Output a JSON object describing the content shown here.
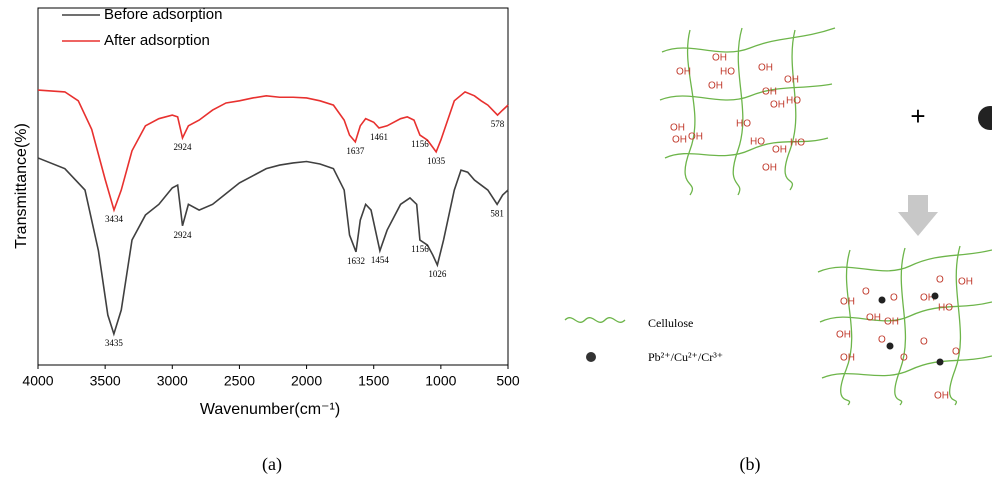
{
  "chart_data": {
    "type": "line",
    "xlabel": "Wavenumber(cm⁻¹)",
    "ylabel": "Transmittance(%)",
    "xlim": [
      4000,
      500
    ],
    "ylim": [
      0,
      100
    ],
    "xticks": [
      4000,
      3500,
      3000,
      2500,
      2000,
      1500,
      1000,
      500
    ],
    "legend": "top-left",
    "series": [
      {
        "name": "Before adsorption",
        "color": "#404040",
        "x": [
          4000,
          3800,
          3650,
          3550,
          3480,
          3435,
          3380,
          3300,
          3200,
          3100,
          3000,
          2960,
          2924,
          2880,
          2800,
          2700,
          2600,
          2500,
          2400,
          2300,
          2200,
          2100,
          2000,
          1900,
          1800,
          1720,
          1680,
          1632,
          1600,
          1560,
          1520,
          1454,
          1400,
          1300,
          1230,
          1180,
          1156,
          1100,
          1060,
          1026,
          980,
          900,
          850,
          800,
          750,
          700,
          650,
          581,
          540,
          500
        ],
        "values": [
          58,
          55,
          49,
          32,
          14,
          8.7,
          15.4,
          35,
          42,
          45,
          49.6,
          50.4,
          39,
          45,
          43.4,
          45,
          48,
          51,
          53,
          55,
          56,
          56.6,
          57,
          56.3,
          55,
          49,
          36.4,
          31.7,
          40.6,
          45,
          43.4,
          32,
          37.8,
          45,
          46.8,
          45,
          35,
          33.6,
          30.8,
          28,
          35,
          49,
          54.6,
          54,
          51.8,
          50.4,
          49,
          45,
          47.6,
          49
        ],
        "peaks": [
          {
            "x": 3435,
            "y": 8.7
          },
          {
            "x": 2924,
            "y": 39
          },
          {
            "x": 1632,
            "y": 31.7
          },
          {
            "x": 1454,
            "y": 32
          },
          {
            "x": 1156,
            "y": 35
          },
          {
            "x": 1026,
            "y": 28
          },
          {
            "x": 581,
            "y": 45
          }
        ]
      },
      {
        "name": "After adsorption",
        "color": "#e8312f",
        "x": [
          4000,
          3800,
          3700,
          3600,
          3500,
          3434,
          3380,
          3300,
          3200,
          3100,
          3000,
          2960,
          2924,
          2880,
          2800,
          2700,
          2600,
          2500,
          2400,
          2300,
          2200,
          2100,
          2000,
          1900,
          1800,
          1720,
          1680,
          1637,
          1600,
          1560,
          1500,
          1461,
          1400,
          1300,
          1250,
          1200,
          1156,
          1100,
          1035,
          1000,
          900,
          820,
          750,
          700,
          650,
          578,
          540,
          500
        ],
        "values": [
          77,
          76.5,
          74,
          66,
          52,
          43.4,
          49,
          60,
          67,
          69,
          70,
          69.5,
          63.6,
          67,
          68.6,
          71.4,
          73.4,
          74,
          74.8,
          75.4,
          75,
          75,
          74.8,
          74,
          72.8,
          68.6,
          64.4,
          62.5,
          67,
          69,
          68,
          66.4,
          67,
          69,
          69.5,
          68.6,
          64.4,
          63,
          59.7,
          63,
          74,
          76.5,
          75.4,
          74,
          72.8,
          70,
          71.4,
          72.8
        ],
        "peaks": [
          {
            "x": 3434,
            "y": 43.4
          },
          {
            "x": 2924,
            "y": 63.6
          },
          {
            "x": 1637,
            "y": 62.5
          },
          {
            "x": 1461,
            "y": 66.4
          },
          {
            "x": 1156,
            "y": 64.4
          },
          {
            "x": 1035,
            "y": 59.7
          },
          {
            "x": 578,
            "y": 70
          }
        ]
      }
    ]
  },
  "panel_labels": [
    "(a)",
    "(b)"
  ],
  "diagram": {
    "plus": "+",
    "top_groups": [
      "OH",
      "OH",
      "HO",
      "OH",
      "OH",
      "OH",
      "OH",
      "HO",
      "OH",
      "OH",
      "OH",
      "HO",
      "OH",
      "HO",
      "OH",
      "HO",
      "OH"
    ],
    "bottom_groups": [
      "O",
      "O",
      "OH",
      "OH",
      "O",
      "OH",
      "OH",
      "HO",
      "OH",
      "OH",
      "O",
      "O",
      "OH",
      "O",
      "O",
      "OH"
    ],
    "legend": [
      "Cellulose",
      "Pb²⁺/Cu²⁺/Cr³⁺"
    ]
  }
}
